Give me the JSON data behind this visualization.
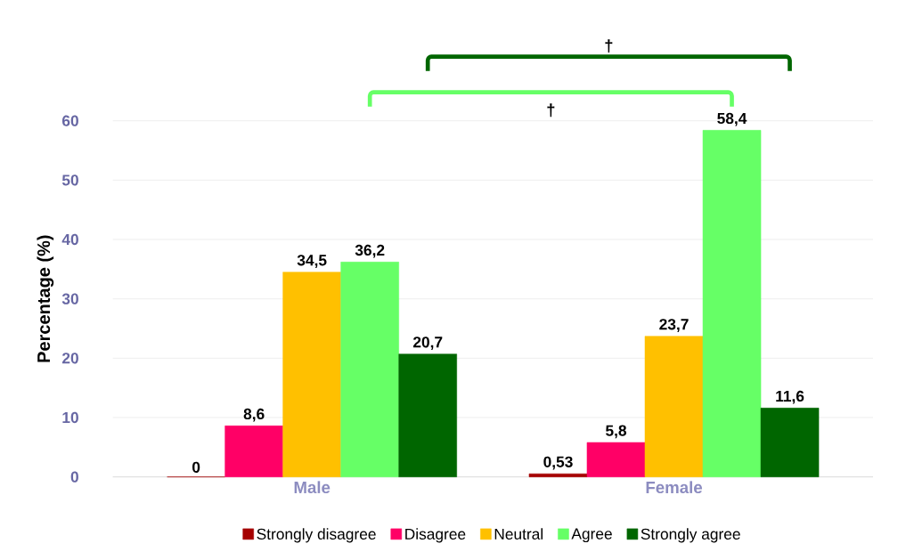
{
  "chart_data": {
    "type": "bar",
    "ylabel": "Percentage (%)",
    "categories": [
      "Male",
      "Female"
    ],
    "series": [
      {
        "name": "Strongly disagree",
        "color": "#a50000",
        "values": [
          0,
          0.53
        ],
        "value_labels": [
          "0",
          "0,53"
        ]
      },
      {
        "name": "Disagree",
        "color": "#ff0066",
        "values": [
          8.6,
          5.8
        ],
        "value_labels": [
          "8,6",
          "5,8"
        ]
      },
      {
        "name": "Neutral",
        "color": "#ffc000",
        "values": [
          34.5,
          23.7
        ],
        "value_labels": [
          "34,5",
          "23,7"
        ]
      },
      {
        "name": "Agree",
        "color": "#66ff66",
        "values": [
          36.2,
          58.4
        ],
        "value_labels": [
          "36,2",
          "58,4"
        ]
      },
      {
        "name": "Strongly agree",
        "color": "#006600",
        "values": [
          20.7,
          11.6
        ],
        "value_labels": [
          "20,7",
          "11,6"
        ]
      }
    ],
    "ylim": [
      0,
      60
    ],
    "yticks": [
      0,
      10,
      20,
      30,
      40,
      50,
      60
    ],
    "grid": "y",
    "legend": "bottom",
    "annotations": [
      "†",
      "†"
    ]
  }
}
